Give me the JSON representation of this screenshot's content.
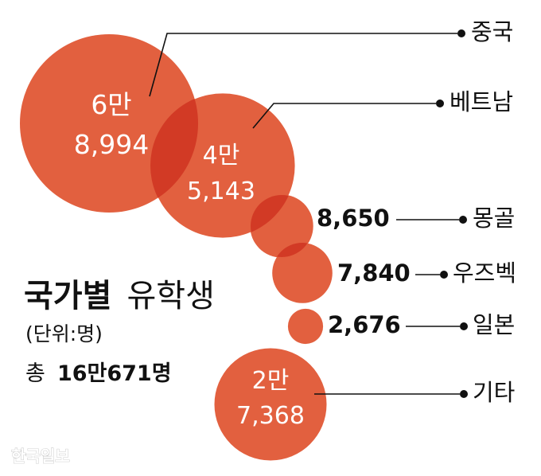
{
  "chart_data": {
    "type": "bubble",
    "title_bold": "국가별",
    "title_light": "유학생",
    "unit": "(단위:명)",
    "total_prefix": "총",
    "total_value": "16만671명",
    "source": "한국일보",
    "colors": {
      "bubble": "#e2603f",
      "overlap": "#d23a25",
      "text": "#111111"
    },
    "series": [
      {
        "name": "중국",
        "value": 68994,
        "label_line1": "6만",
        "label_line2": "8,994"
      },
      {
        "name": "베트남",
        "value": 45143,
        "label_line1": "4만",
        "label_line2": "5,143"
      },
      {
        "name": "몽골",
        "value": 8650,
        "label": "8,650"
      },
      {
        "name": "우즈벡",
        "value": 7840,
        "label": "7,840"
      },
      {
        "name": "일본",
        "value": 2676,
        "label": "2,676"
      },
      {
        "name": "기타",
        "value": 27368,
        "label_line1": "2만",
        "label_line2": "7,368"
      }
    ]
  }
}
